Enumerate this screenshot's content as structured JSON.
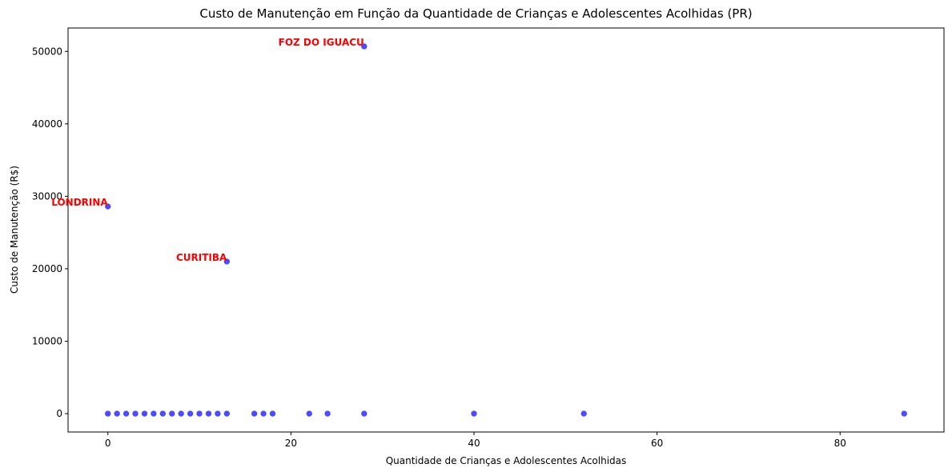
{
  "chart_data": {
    "type": "scatter",
    "title": "Custo de Manutenção em Função da Quantidade de Crianças e Adolescentes Acolhidas (PR)",
    "xlabel": "Quantidade de Crianças e Adolescentes Acolhidas",
    "ylabel": "Custo de Manutenção (R$)",
    "xlim": [
      -4.35,
      91.35
    ],
    "ylim": [
      -2535,
      53235
    ],
    "xticks": [
      0,
      20,
      40,
      60,
      80
    ],
    "yticks": [
      0,
      10000,
      20000,
      30000,
      40000,
      50000
    ],
    "grid": false,
    "point_color": "#0000ff",
    "annotation_color": "#ff0000",
    "points": [
      {
        "x": 0,
        "y": 0
      },
      {
        "x": 1,
        "y": 0
      },
      {
        "x": 2,
        "y": 0
      },
      {
        "x": 3,
        "y": 0
      },
      {
        "x": 4,
        "y": 0
      },
      {
        "x": 5,
        "y": 0
      },
      {
        "x": 6,
        "y": 0
      },
      {
        "x": 7,
        "y": 0
      },
      {
        "x": 8,
        "y": 0
      },
      {
        "x": 9,
        "y": 0
      },
      {
        "x": 10,
        "y": 0
      },
      {
        "x": 11,
        "y": 0
      },
      {
        "x": 12,
        "y": 0
      },
      {
        "x": 13,
        "y": 0
      },
      {
        "x": 16,
        "y": 0
      },
      {
        "x": 17,
        "y": 0
      },
      {
        "x": 18,
        "y": 0
      },
      {
        "x": 22,
        "y": 0
      },
      {
        "x": 24,
        "y": 0
      },
      {
        "x": 28,
        "y": 0
      },
      {
        "x": 40,
        "y": 0
      },
      {
        "x": 52,
        "y": 0
      },
      {
        "x": 87,
        "y": 0
      },
      {
        "x": 0,
        "y": 28600
      },
      {
        "x": 13,
        "y": 21000
      },
      {
        "x": 28,
        "y": 50700
      }
    ],
    "annotations": [
      {
        "text": "FOZ DO IGUACU",
        "x": 28,
        "y": 50700
      },
      {
        "text": "LONDRINA",
        "x": 0,
        "y": 28600
      },
      {
        "text": "CURITIBA",
        "x": 13,
        "y": 21000
      }
    ]
  }
}
